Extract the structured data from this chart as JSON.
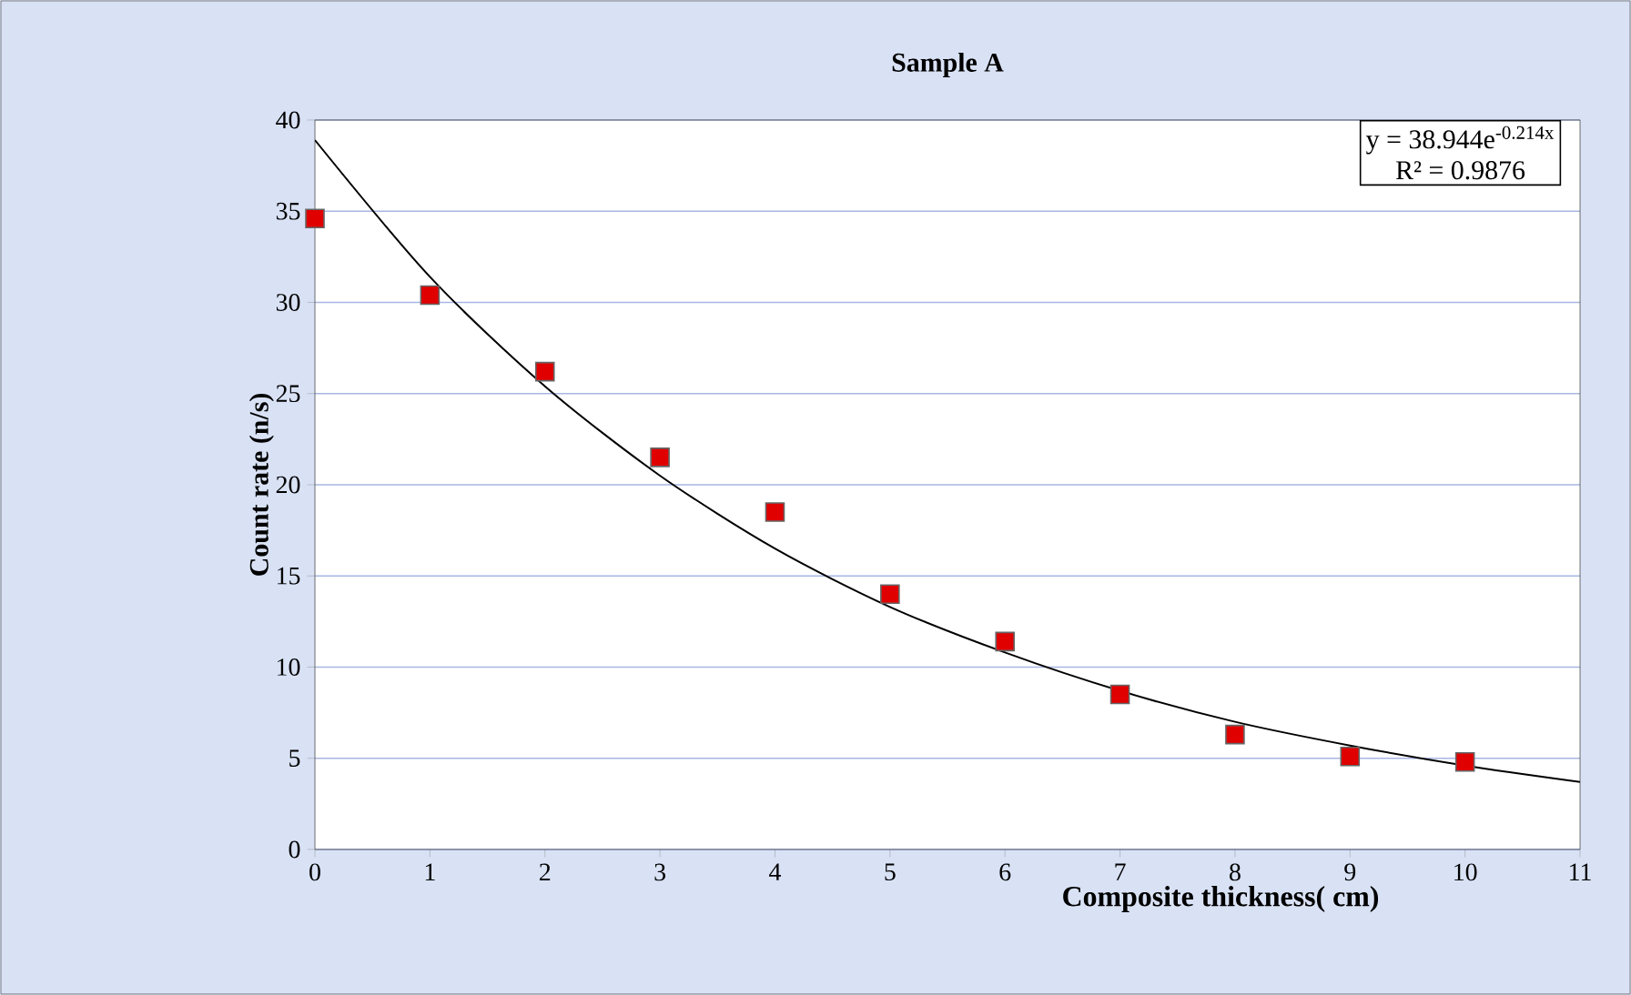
{
  "chart_data": {
    "type": "scatter",
    "title": "Sample A",
    "xlabel": "Composite thickness( cm)",
    "ylabel": "Count rate (n/s)",
    "x": [
      0,
      1,
      2,
      3,
      4,
      5,
      6,
      7,
      8,
      9,
      10
    ],
    "series": [
      {
        "color": "#e00000",
        "marker": "square",
        "values": [
          34.6,
          30.4,
          26.2,
          21.5,
          18.5,
          14.0,
          11.4,
          8.5,
          6.3,
          5.1,
          4.8
        ]
      },
      {
        "type": "line",
        "color": "#000000",
        "marker": "none",
        "x": [
          0,
          1,
          2,
          3,
          4,
          5,
          6,
          7,
          8,
          9,
          10,
          11
        ],
        "values": [
          38.9,
          31.4,
          25.4,
          20.5,
          16.5,
          13.3,
          10.8,
          8.7,
          7.0,
          5.7,
          4.6,
          3.7
        ]
      }
    ],
    "annotations": [
      "y = 38.944e$^{-0.214x}$",
      "R² = 0.9876"
    ],
    "xlim": [
      0,
      11
    ],
    "xticks": [
      0,
      1,
      2,
      3,
      4,
      5,
      6,
      7,
      8,
      9,
      10,
      11
    ],
    "ylim": [
      0,
      40
    ],
    "yticks": [
      0,
      5,
      10,
      15,
      20,
      25,
      30,
      35,
      40
    ],
    "grid": "y"
  }
}
